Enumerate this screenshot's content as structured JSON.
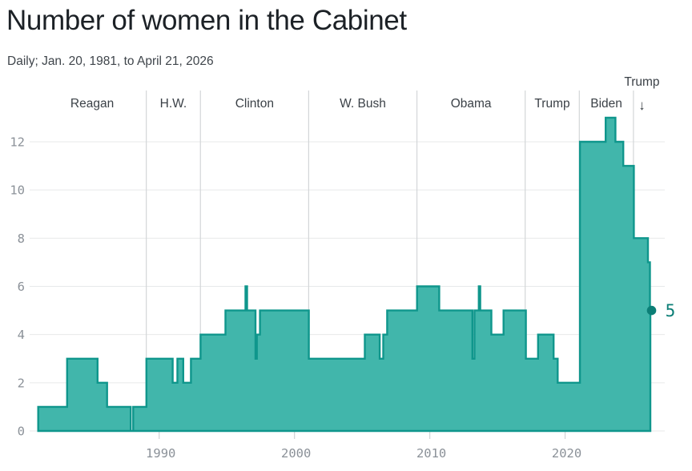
{
  "header": {
    "title": "Number of women in the Cabinet",
    "subtitle": "Daily; Jan. 20, 1981, to April 21, 2026"
  },
  "colors": {
    "fill": "#41b6ab",
    "stroke": "#0f968c",
    "accent": "#0b7e76",
    "grid": "#e7e9ea",
    "divider": "#d3d6d8",
    "tick": "#d3d6d8",
    "axis_text": "#8b9198",
    "president_text": "#3b4147",
    "title_text": "#1c2126",
    "subtitle_text": "#3f454b"
  },
  "chart_data": {
    "type": "area",
    "step": true,
    "title": "Number of women in the Cabinet",
    "subtitle": "Daily; Jan. 20, 1981, to April 21, 2026",
    "series_name": "Number of women in the Cabinet",
    "x_range": [
      1981.05,
      2026.3
    ],
    "ylim": [
      0,
      13.4
    ],
    "y_ticks": [
      0,
      2,
      4,
      6,
      8,
      10,
      12
    ],
    "x_ticks": [
      1990,
      2000,
      2010,
      2020
    ],
    "grid": true,
    "legend": "none",
    "step_points": [
      [
        1981.06,
        1
      ],
      [
        1983.2,
        3
      ],
      [
        1985.45,
        2
      ],
      [
        1986.15,
        1
      ],
      [
        1987.9,
        0
      ],
      [
        1988.08,
        1
      ],
      [
        1989.06,
        3
      ],
      [
        1991.0,
        2
      ],
      [
        1991.35,
        3
      ],
      [
        1991.78,
        2
      ],
      [
        1992.35,
        3
      ],
      [
        1993.06,
        4
      ],
      [
        1994.9,
        5
      ],
      [
        1996.38,
        6
      ],
      [
        1996.5,
        5
      ],
      [
        1997.12,
        3
      ],
      [
        1997.22,
        4
      ],
      [
        1997.45,
        5
      ],
      [
        2001.06,
        3
      ],
      [
        2005.2,
        4
      ],
      [
        2006.3,
        3
      ],
      [
        2006.56,
        4
      ],
      [
        2006.85,
        5
      ],
      [
        2009.06,
        6
      ],
      [
        2010.7,
        5
      ],
      [
        2013.15,
        3
      ],
      [
        2013.3,
        5
      ],
      [
        2013.62,
        6
      ],
      [
        2013.73,
        5
      ],
      [
        2014.55,
        4
      ],
      [
        2015.45,
        5
      ],
      [
        2017.1,
        3
      ],
      [
        2018.0,
        4
      ],
      [
        2019.15,
        3
      ],
      [
        2019.45,
        2
      ],
      [
        2021.1,
        12
      ],
      [
        2023.0,
        13
      ],
      [
        2023.72,
        12
      ],
      [
        2024.3,
        11
      ],
      [
        2025.08,
        8
      ],
      [
        2026.12,
        7
      ],
      [
        2026.27,
        5
      ]
    ],
    "end_point": {
      "year": 2026.3,
      "value": 5,
      "label": "5"
    },
    "presidents": [
      {
        "label": "Reagan",
        "start": 1981.05,
        "end": 1989.05
      },
      {
        "label": "H.W.",
        "start": 1989.05,
        "end": 1993.05
      },
      {
        "label": "Clinton",
        "start": 1993.05,
        "end": 2001.05
      },
      {
        "label": "W. Bush",
        "start": 2001.05,
        "end": 2009.05
      },
      {
        "label": "Obama",
        "start": 2009.05,
        "end": 2017.05
      },
      {
        "label": "Trump",
        "start": 2017.05,
        "end": 2021.05
      },
      {
        "label": "Biden",
        "start": 2021.05,
        "end": 2025.05
      },
      {
        "label": "Trump",
        "start": 2025.05,
        "end": 2026.3,
        "annotation_above": true,
        "arrow": "↓"
      }
    ]
  }
}
